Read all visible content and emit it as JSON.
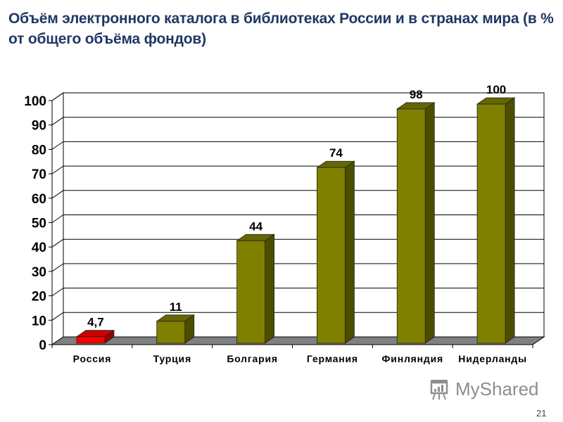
{
  "slide": {
    "title": "Объём электронного каталога в библиотеках России и в странах мира (в % от общего объёма фондов)",
    "watermark": "MyShared",
    "watermark_icon": "presentation-board-icon",
    "page_number": "21"
  },
  "chart_data": {
    "type": "bar",
    "style": "3d-column",
    "title": "Объём электронного каталога в библиотеках России и в странах мира (в % от общего объёма фондов)",
    "xlabel": "",
    "ylabel": "",
    "categories": [
      "Россия",
      "Турция",
      "Болгария",
      "Германия",
      "Финляндия",
      "Нидерланды"
    ],
    "values": [
      4.7,
      11,
      44,
      74,
      98,
      100
    ],
    "data_labels": [
      "4,7",
      "11",
      "44",
      "74",
      "98",
      "100"
    ],
    "ylim": [
      0,
      100
    ],
    "yticks": [
      0,
      10,
      20,
      30,
      40,
      50,
      60,
      70,
      80,
      90,
      100
    ],
    "grid": true,
    "legend": null,
    "colors": {
      "highlight": "#ff0000",
      "highlight_top": "#cc0000",
      "highlight_side": "#990000",
      "default": "#808000",
      "default_top": "#666600",
      "default_side": "#4d4d00",
      "floor": "#808080",
      "grid": "#000000"
    },
    "highlight_index": 0
  }
}
